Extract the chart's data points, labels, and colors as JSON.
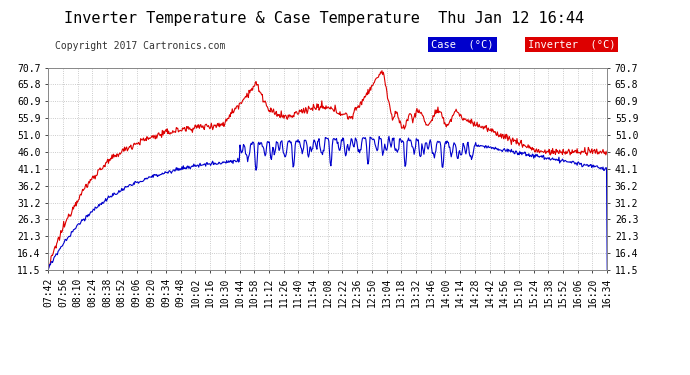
{
  "title": "Inverter Temperature & Case Temperature  Thu Jan 12 16:44",
  "copyright": "Copyright 2017 Cartronics.com",
  "legend_case_label": "Case  (°C)",
  "legend_inverter_label": "Inverter  (°C)",
  "case_color": "#0000cc",
  "inverter_color": "#dd0000",
  "bg_color": "#ffffff",
  "plot_bg_color": "#ffffff",
  "grid_color": "#bbbbbb",
  "ylim": [
    11.5,
    70.7
  ],
  "yticks": [
    11.5,
    16.4,
    21.3,
    26.3,
    31.2,
    36.2,
    41.1,
    46.0,
    51.0,
    55.9,
    60.9,
    65.8,
    70.7
  ],
  "xtick_labels": [
    "07:42",
    "07:56",
    "08:10",
    "08:24",
    "08:38",
    "08:52",
    "09:06",
    "09:20",
    "09:34",
    "09:48",
    "10:02",
    "10:16",
    "10:30",
    "10:44",
    "10:58",
    "11:12",
    "11:26",
    "11:40",
    "11:54",
    "12:08",
    "12:22",
    "12:36",
    "12:50",
    "13:04",
    "13:18",
    "13:32",
    "13:46",
    "14:00",
    "14:14",
    "14:28",
    "14:42",
    "14:56",
    "15:10",
    "15:24",
    "15:38",
    "15:52",
    "16:06",
    "16:20",
    "16:34"
  ],
  "title_fontsize": 11,
  "copyright_fontsize": 7,
  "tick_fontsize": 7,
  "legend_fontsize": 7.5
}
